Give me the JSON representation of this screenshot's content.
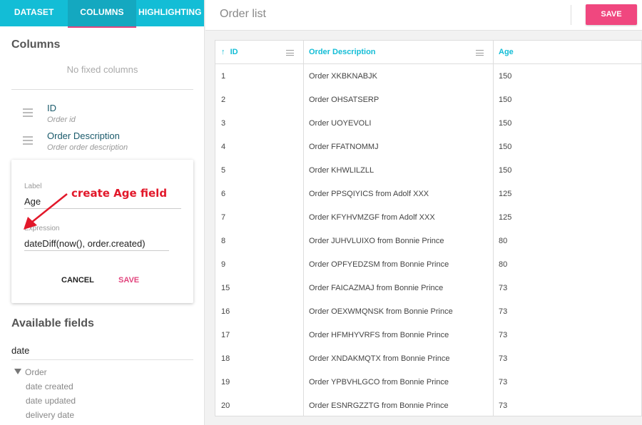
{
  "sidebar": {
    "tabs": [
      {
        "label": "DATASET",
        "active": false
      },
      {
        "label": "COLUMNS",
        "active": true
      },
      {
        "label": "HIGHLIGHTING",
        "active": false
      }
    ],
    "columns_title": "Columns",
    "no_fixed_columns": "No fixed columns",
    "columns": [
      {
        "name": "ID",
        "description": "Order id"
      },
      {
        "name": "Order Description",
        "description": "Order order description"
      }
    ],
    "editor": {
      "label_caption": "Label",
      "label_value": "Age",
      "expression_caption": "Expression",
      "expression_value": "dateDiff(now(), order.created)",
      "cancel": "CANCEL",
      "save": "SAVE"
    },
    "annotation": "create Age field",
    "available_fields_title": "Available fields",
    "filter_value": "date",
    "tree": {
      "group": "Order",
      "items": [
        "date created",
        "date updated",
        "delivery date"
      ]
    }
  },
  "header": {
    "title": "Order list",
    "save": "SAVE"
  },
  "table": {
    "columns": [
      {
        "label": "ID",
        "sort_icon": "↑"
      },
      {
        "label": "Order Description"
      },
      {
        "label": "Age"
      }
    ],
    "rows": [
      {
        "id": "1",
        "desc": "Order XKBKNABJK",
        "age": "150"
      },
      {
        "id": "2",
        "desc": "Order OHSATSERP",
        "age": "150"
      },
      {
        "id": "3",
        "desc": "Order UOYEVOLI",
        "age": "150"
      },
      {
        "id": "4",
        "desc": "Order FFATNOMMJ",
        "age": "150"
      },
      {
        "id": "5",
        "desc": "Order KHWLILZLL",
        "age": "150"
      },
      {
        "id": "6",
        "desc": "Order PPSQIYICS from Adolf XXX",
        "age": "125"
      },
      {
        "id": "7",
        "desc": "Order KFYHVMZGF from Adolf XXX",
        "age": "125"
      },
      {
        "id": "8",
        "desc": "Order JUHVLUIXO from Bonnie Prince",
        "age": "80"
      },
      {
        "id": "9",
        "desc": "Order OPFYEDZSM from Bonnie Prince",
        "age": "80"
      },
      {
        "id": "15",
        "desc": "Order FAICAZMAJ from Bonnie Prince",
        "age": "73"
      },
      {
        "id": "16",
        "desc": "Order OEXWMQNSK from Bonnie Prince",
        "age": "73"
      },
      {
        "id": "17",
        "desc": "Order HFMHYVRFS from Bonnie Prince",
        "age": "73"
      },
      {
        "id": "18",
        "desc": "Order XNDAKMQTX from Bonnie Prince",
        "age": "73"
      },
      {
        "id": "19",
        "desc": "Order YPBVHLGCO from Bonnie Prince",
        "age": "73"
      },
      {
        "id": "20",
        "desc": "Order ESNRGZZTG from Bonnie Prince",
        "age": "73"
      }
    ]
  },
  "colors": {
    "accent": "#13bdd6",
    "primary": "#f0477f",
    "annotation": "#e2182a"
  }
}
